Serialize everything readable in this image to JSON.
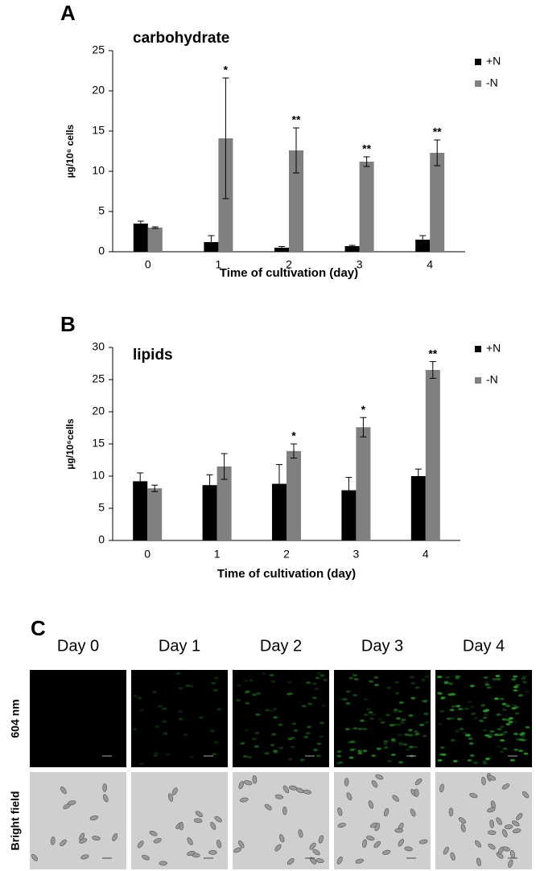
{
  "panel_labels": [
    "A",
    "B",
    "C"
  ],
  "chart_data": [
    {
      "type": "bar",
      "title": "carbohydrate",
      "xlabel": "Time of cultivation (day)",
      "ylabel": "µg/10⁶ cells",
      "categories": [
        "0",
        "1",
        "2",
        "3",
        "4"
      ],
      "series": [
        {
          "name": "+N",
          "color": "#000000",
          "values": [
            3.5,
            1.2,
            0.5,
            0.7,
            1.5
          ],
          "errors": [
            0.3,
            0.8,
            0.15,
            0.1,
            0.5
          ]
        },
        {
          "name": "-N",
          "color": "#808080",
          "values": [
            3.0,
            14.1,
            12.6,
            11.2,
            12.3
          ],
          "errors": [
            0.1,
            7.5,
            2.8,
            0.6,
            1.6
          ],
          "significance": [
            null,
            "*",
            "**",
            "**",
            "**"
          ]
        }
      ],
      "ylim": [
        0,
        25
      ],
      "yticks": [
        0,
        5,
        10,
        15,
        20,
        25
      ],
      "grid": false
    },
    {
      "type": "bar",
      "title": "lipids",
      "xlabel": "Time of cultivation (day)",
      "ylabel": "µg/10⁶cells",
      "categories": [
        "0",
        "1",
        "2",
        "3",
        "4"
      ],
      "series": [
        {
          "name": "+N",
          "color": "#000000",
          "values": [
            9.2,
            8.6,
            8.8,
            7.8,
            10.0
          ],
          "errors": [
            1.3,
            1.6,
            3.0,
            2.0,
            1.1
          ]
        },
        {
          "name": "-N",
          "color": "#808080",
          "values": [
            8.1,
            11.5,
            13.9,
            17.6,
            26.5
          ],
          "errors": [
            0.5,
            2.0,
            1.1,
            1.5,
            1.3
          ],
          "significance": [
            null,
            null,
            "*",
            "*",
            "**"
          ]
        }
      ],
      "ylim": [
        0,
        30
      ],
      "yticks": [
        0,
        5,
        10,
        15,
        20,
        25,
        30
      ],
      "grid": false
    }
  ],
  "micrographs": {
    "columns": [
      "Day 0",
      "Day 1",
      "Day 2",
      "Day 3",
      "Day 4"
    ],
    "rows": [
      "604 nm",
      "Bright field"
    ]
  }
}
